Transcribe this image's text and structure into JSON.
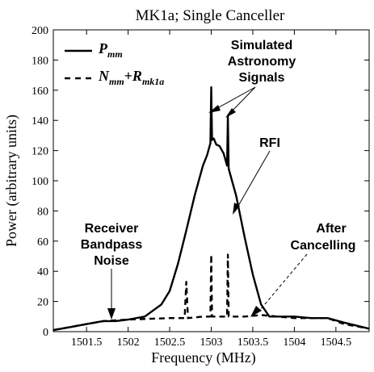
{
  "chart_data": {
    "type": "line",
    "title": "MK1a; Single Canceller",
    "xlabel": "Frequency (MHz)",
    "ylabel": "Power (arbitrary units)",
    "xlim": [
      1501.1,
      1504.9
    ],
    "ylim": [
      0,
      200
    ],
    "x_ticks": [
      1501.5,
      1502,
      1502.5,
      1503,
      1503.5,
      1504,
      1504.5
    ],
    "x_tick_labels": [
      "1501.5",
      "1502",
      "1502.5",
      "1503",
      "1503.5",
      "1504",
      "1504.5"
    ],
    "y_ticks": [
      0,
      20,
      40,
      60,
      80,
      100,
      120,
      140,
      160,
      180,
      200
    ],
    "y_tick_labels": [
      "0",
      "20",
      "40",
      "60",
      "80",
      "100",
      "120",
      "140",
      "160",
      "180",
      "200"
    ],
    "grid": false,
    "legend": {
      "placement": "top-left",
      "entries": [
        {
          "base": "P",
          "sub": "mm",
          "style": "solid"
        },
        {
          "base": "N",
          "sub": "mm",
          "plus": "+R",
          "sub2": "mk1a",
          "style": "dashed"
        }
      ]
    },
    "series": [
      {
        "style": "solid",
        "x": [
          1501.1,
          1501.3,
          1501.5,
          1501.7,
          1501.85,
          1502.0,
          1502.2,
          1502.4,
          1502.5,
          1502.6,
          1502.7,
          1502.8,
          1502.9,
          1502.95,
          1502.99,
          1503.0,
          1503.01,
          1503.03,
          1503.06,
          1503.1,
          1503.15,
          1503.19,
          1503.2,
          1503.21,
          1503.25,
          1503.3,
          1503.4,
          1503.5,
          1503.6,
          1503.7,
          1503.8,
          1503.9,
          1504.0,
          1504.2,
          1504.4,
          1504.6,
          1504.9
        ],
        "y": [
          1,
          3,
          5,
          7,
          7,
          8,
          10,
          18,
          27,
          45,
          67,
          90,
          110,
          117,
          125,
          162,
          127,
          128,
          124,
          123,
          118,
          110,
          143,
          108,
          100,
          90,
          63,
          38,
          18,
          10,
          10,
          10,
          10,
          9,
          9,
          6,
          2
        ]
      },
      {
        "style": "dashed",
        "x": [
          1501.1,
          1501.4,
          1501.7,
          1502.0,
          1502.5,
          1502.68,
          1502.7,
          1502.72,
          1502.9,
          1502.99,
          1503.0,
          1503.01,
          1503.1,
          1503.19,
          1503.2,
          1503.21,
          1503.4,
          1503.6,
          1503.8,
          1504.0,
          1504.2,
          1504.4,
          1504.6,
          1504.9
        ],
        "y": [
          1,
          4,
          7,
          8,
          9,
          9,
          33,
          9,
          10,
          10,
          51,
          10,
          10,
          10,
          51,
          10,
          10,
          11,
          10,
          9,
          9,
          9,
          5,
          2
        ]
      }
    ],
    "annotations": [
      {
        "lines": [
          "Simulated",
          "Astronomy",
          "Signals"
        ]
      },
      {
        "lines": [
          "RFI"
        ]
      },
      {
        "lines": [
          "Receiver",
          "Bandpass",
          "Noise"
        ]
      },
      {
        "lines": [
          "After",
          "Cancelling"
        ]
      }
    ]
  }
}
